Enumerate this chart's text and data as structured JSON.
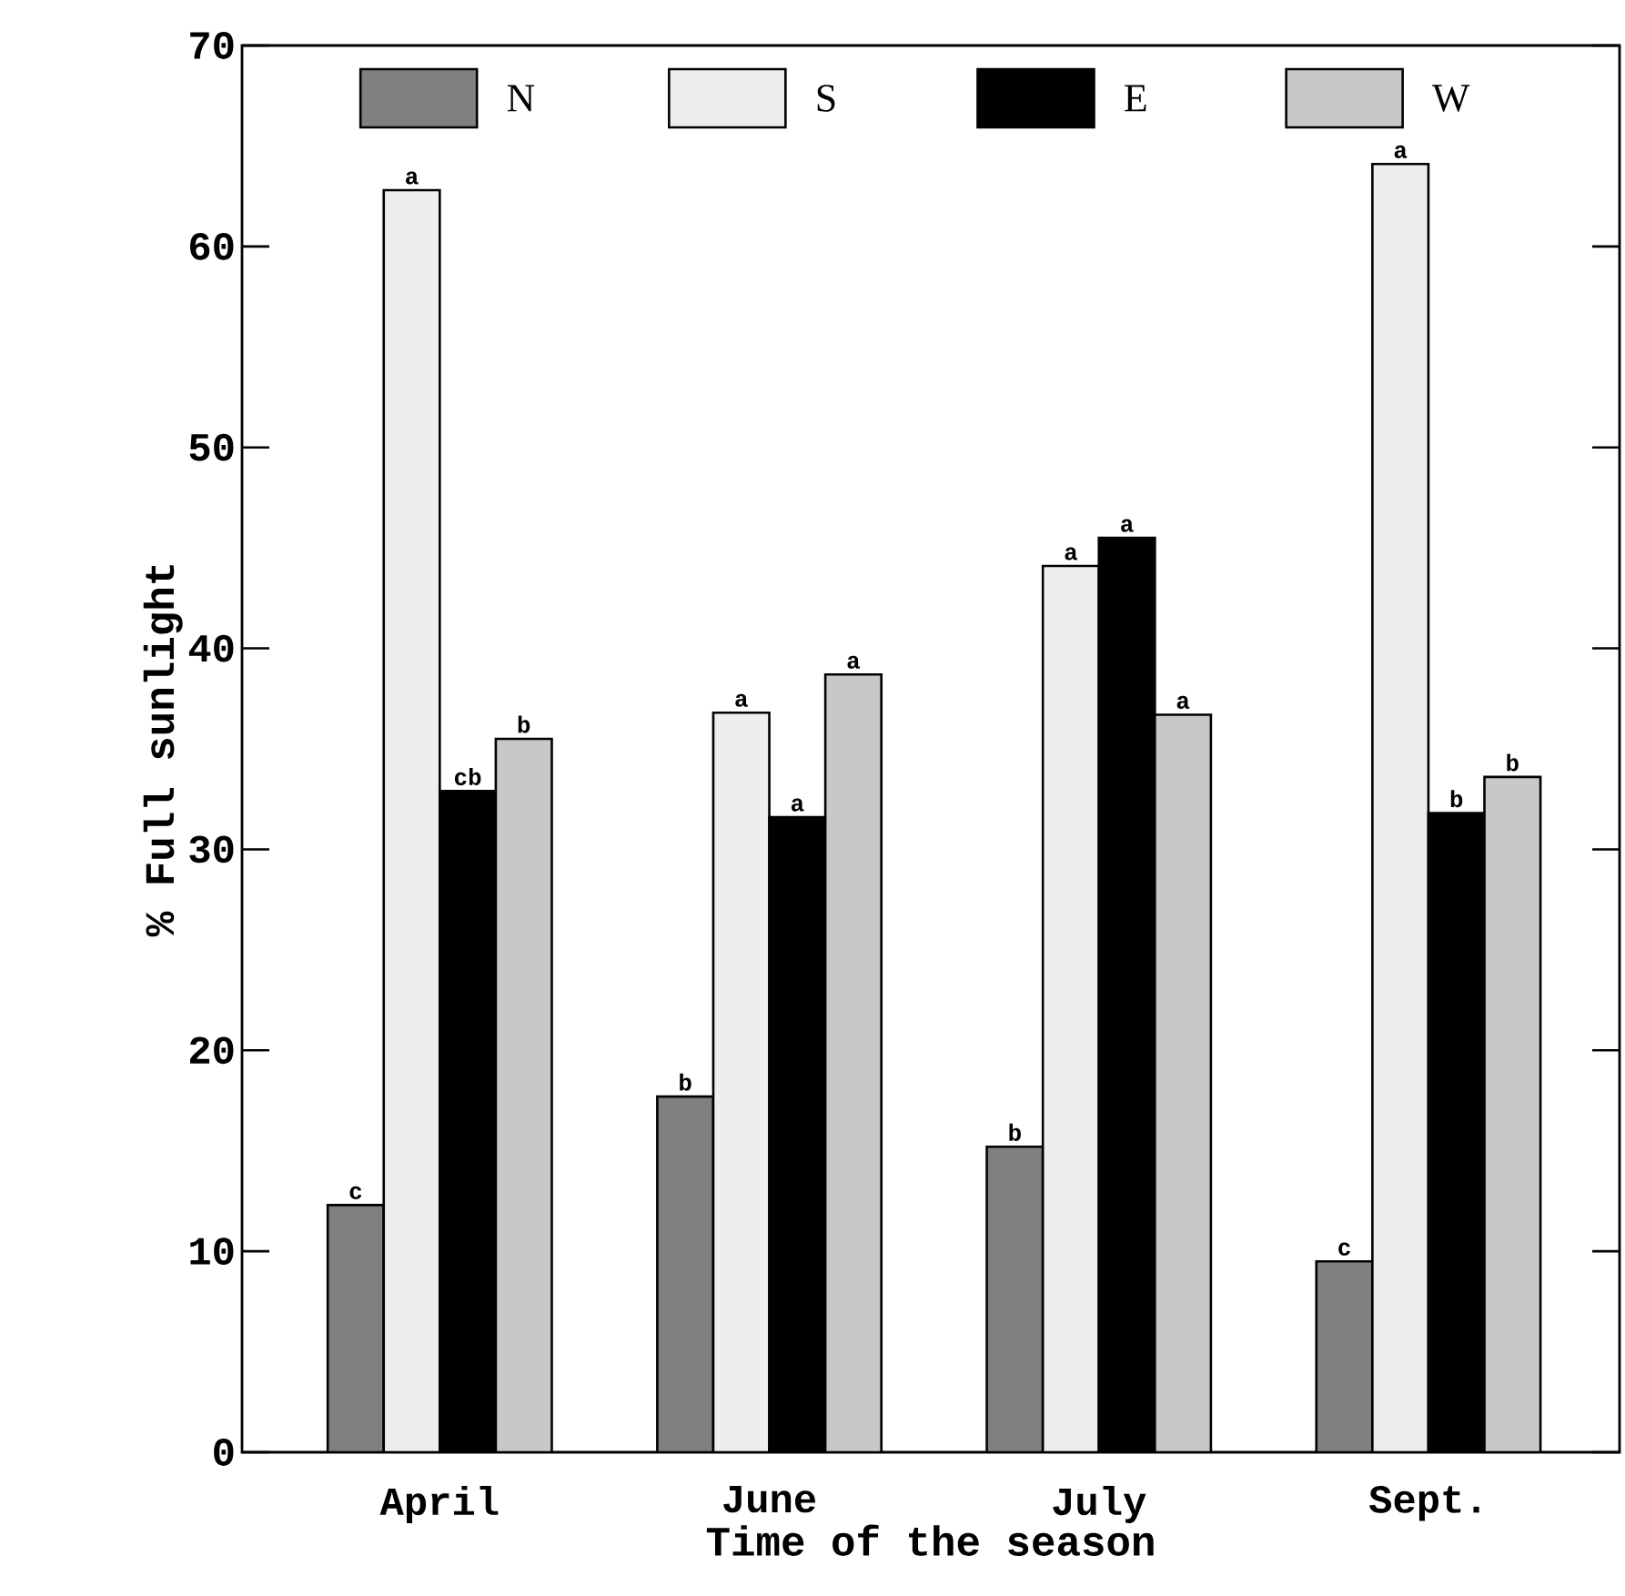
{
  "chart_data": {
    "type": "bar",
    "xlabel": "Time of the season",
    "ylabel": "% Full sunlight",
    "categories": [
      "April",
      "June",
      "July",
      "Sept."
    ],
    "series": [
      {
        "name": "N",
        "color": "#808080",
        "values": [
          12.3,
          17.7,
          15.2,
          9.5
        ]
      },
      {
        "name": "S",
        "color": "#eeeeee",
        "values": [
          62.8,
          36.8,
          44.1,
          64.1
        ]
      },
      {
        "name": "E",
        "color": "#000000",
        "values": [
          32.9,
          31.6,
          45.5,
          31.8
        ]
      },
      {
        "name": "W",
        "color": "#c8c8c8",
        "values": [
          35.5,
          38.7,
          36.7,
          33.6
        ]
      }
    ],
    "ylim": [
      0,
      70
    ],
    "yticks": [
      0,
      10,
      20,
      30,
      40,
      50,
      60,
      70
    ],
    "legend": "top",
    "grid": false,
    "annotations": [
      "c",
      "a",
      "cb",
      "b",
      "b",
      "a",
      "a",
      "a",
      "b",
      "a",
      "a",
      "a",
      "c",
      "a",
      "b",
      "b"
    ]
  }
}
